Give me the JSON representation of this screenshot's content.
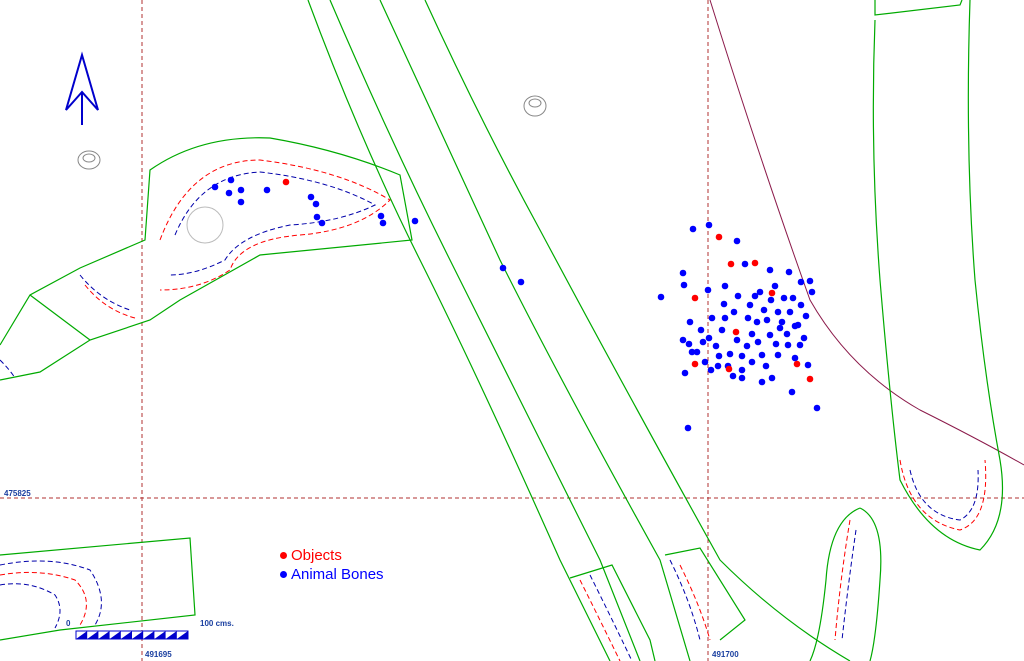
{
  "legend": {
    "items": [
      {
        "label": "Objects",
        "color": "#ff0000"
      },
      {
        "label": "Animal Bones",
        "color": "#0000ff"
      }
    ]
  },
  "grid": {
    "easting_labels": [
      "491695",
      "491700"
    ],
    "northing_labels": [
      "475825"
    ],
    "label_color": "#1a3fa0",
    "line_color": "#b03030"
  },
  "scale_bar": {
    "start_label": "0",
    "end_label": "100 cms."
  },
  "colors": {
    "feature_outline": "#00aa00",
    "contour_red": "#ff0000",
    "contour_blue": "#0000aa",
    "boundary_line": "#8b1a4a",
    "north_arrow": "#0000cc"
  },
  "icons": [
    "north-arrow-icon"
  ]
}
